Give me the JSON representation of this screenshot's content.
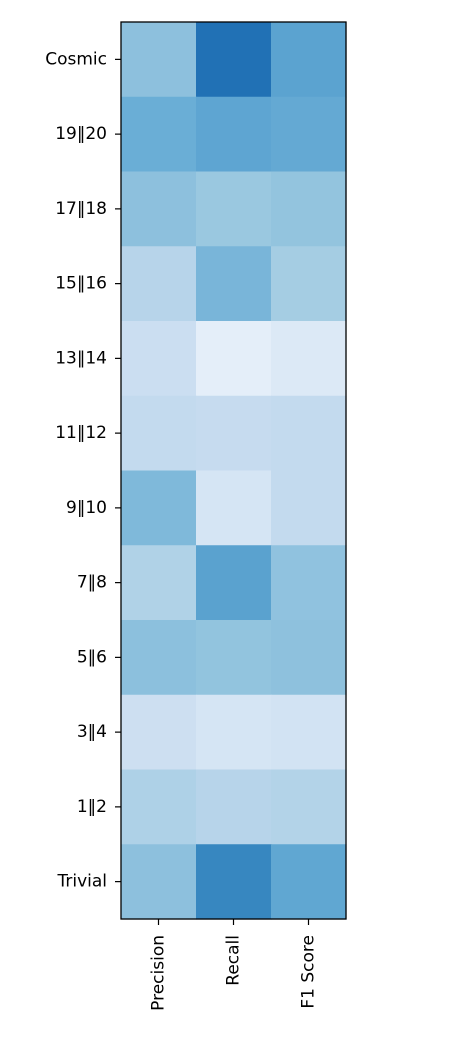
{
  "chart_data": {
    "type": "heatmap",
    "title": "",
    "xlabel": "",
    "ylabel": "",
    "colormap": "Blues",
    "x_categories": [
      "Precision",
      "Recall",
      "F1 Score"
    ],
    "y_categories": [
      "Cosmic",
      "19‖20",
      "17‖18",
      "15‖16",
      "13‖14",
      "11‖12",
      "9‖10",
      "7‖8",
      "5‖6",
      "3‖4",
      "1‖2",
      "Trivial"
    ],
    "colors": [
      [
        "#8dc0dd",
        "#2171b5",
        "#5ba3d0"
      ],
      [
        "#6aaed6",
        "#5ea5d2",
        "#64a9d3"
      ],
      [
        "#8dc0dd",
        "#9ac8e0",
        "#93c4de"
      ],
      [
        "#b7d4ea",
        "#79b5d9",
        "#a5cde3"
      ],
      [
        "#cbdef1",
        "#e4eef9",
        "#dce9f6"
      ],
      [
        "#c3daee",
        "#c6dbef",
        "#c3daee"
      ],
      [
        "#7fb9da",
        "#d5e5f4",
        "#c3daee"
      ],
      [
        "#b0d2e7",
        "#5aa2cf",
        "#90c2df"
      ],
      [
        "#8cc0dd",
        "#92c4de",
        "#8ec1dd"
      ],
      [
        "#cddff1",
        "#d5e5f4",
        "#d2e3f3"
      ],
      [
        "#aed1e7",
        "#b7d4ea",
        "#b3d3e8"
      ],
      [
        "#8dc0dd",
        "#3787c0",
        "#60a7d2"
      ]
    ]
  }
}
